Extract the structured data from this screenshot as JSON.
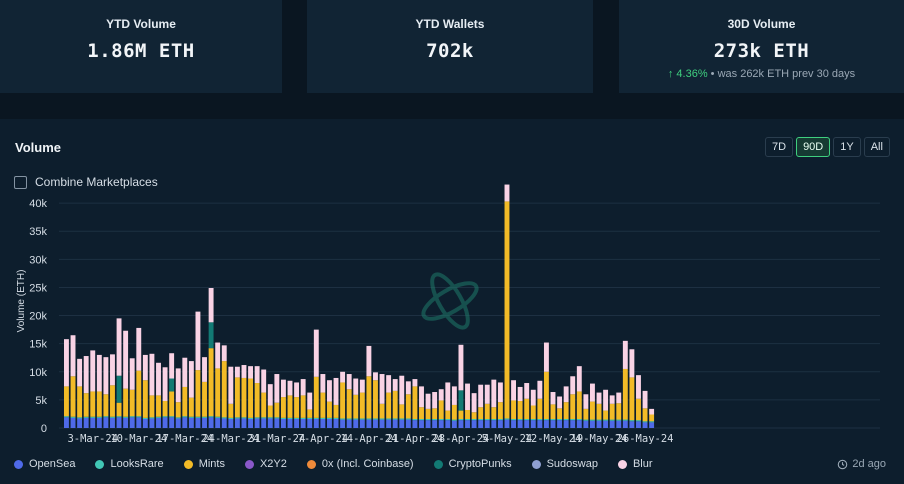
{
  "stats": [
    {
      "label": "YTD Volume",
      "value": "1.86M ETH"
    },
    {
      "label": "YTD Wallets",
      "value": "702k"
    },
    {
      "label": "30D Volume",
      "value": "273k ETH",
      "delta_arrow": "↑",
      "delta": "4.36%",
      "delta_note": "• was 262k ETH prev 30 days"
    }
  ],
  "volume_panel": {
    "title": "Volume",
    "ranges": [
      "7D",
      "90D",
      "1Y",
      "All"
    ],
    "active_range": "90D",
    "combine_label": "Combine Marketplaces",
    "updated": "2d ago"
  },
  "colors": {
    "opensea": "#4f6ae8",
    "looksrare": "#41c7b5",
    "mints": "#f2bb27",
    "x2y2": "#8a58c9",
    "zerox": "#ee8a3a",
    "cryptopunks": "#127a74",
    "sudoswap": "#8e9fd1",
    "blur": "#f9d3e5",
    "accent": "#3fcf7f"
  },
  "chart_data": {
    "type": "bar",
    "stacked": true,
    "ylabel": "Volume (ETH)",
    "yticks": [
      "0",
      "5k",
      "10k",
      "15k",
      "20k",
      "25k",
      "30k",
      "35k",
      "40k"
    ],
    "ylim": [
      0,
      45000
    ],
    "grid": true,
    "xtick_labels": [
      "3-Mar-24",
      "10-Mar-24",
      "17-Mar-24",
      "24-Mar-24",
      "31-Mar-24",
      "7-Apr-24",
      "14-Apr-24",
      "21-Apr-24",
      "28-Apr-24",
      "5-May-24",
      "12-May-24",
      "19-May-24",
      "26-May-24"
    ],
    "xtick_day_index": [
      4,
      11,
      18,
      25,
      32,
      39,
      46,
      53,
      60,
      67,
      74,
      81,
      88
    ],
    "series": [
      {
        "name": "OpenSea",
        "color_key": "opensea",
        "values": [
          1900,
          1800,
          1700,
          1800,
          1800,
          1800,
          1900,
          1800,
          1900,
          1800,
          1900,
          1900,
          1600,
          1700,
          1800,
          1900,
          1900,
          1700,
          1900,
          1800,
          1800,
          1800,
          1900,
          1800,
          1700,
          1600,
          1700,
          1700,
          1600,
          1700,
          1700,
          1700,
          1700,
          1600,
          1600,
          1600,
          1600,
          1600,
          1600,
          1600,
          1600,
          1600,
          1500,
          1500,
          1500,
          1500,
          1500,
          1500,
          1500,
          1500,
          1500,
          1500,
          1500,
          1400,
          1400,
          1400,
          1400,
          1400,
          1400,
          1300,
          1400,
          1400,
          1400,
          1400,
          1400,
          1400,
          1400,
          1500,
          1400,
          1400,
          1400,
          1400,
          1400,
          1400,
          1400,
          1400,
          1400,
          1400,
          1400,
          1300,
          1300,
          1300,
          1300,
          1300,
          1300,
          1300,
          1200,
          1200,
          1000,
          1000
        ]
      },
      {
        "name": "LooksRare",
        "color_key": "looksrare",
        "values": [
          200,
          200,
          200,
          200,
          200,
          200,
          200,
          200,
          200,
          200,
          200,
          200,
          200,
          200,
          200,
          200,
          200,
          200,
          200,
          200,
          200,
          200,
          200,
          200,
          200,
          200,
          200,
          200,
          200,
          200,
          200,
          200,
          200,
          200,
          200,
          200,
          200,
          200,
          200,
          200,
          200,
          200,
          200,
          200,
          200,
          200,
          200,
          200,
          200,
          200,
          200,
          200,
          200,
          200,
          200,
          200,
          200,
          200,
          200,
          200,
          200,
          200,
          200,
          200,
          200,
          200,
          200,
          200,
          200,
          200,
          200,
          200,
          200,
          200,
          200,
          200,
          200,
          200,
          200,
          200,
          200,
          200,
          200,
          200,
          200,
          200,
          200,
          200,
          200,
          200
        ]
      },
      {
        "name": "Mints",
        "color_key": "mints",
        "values": [
          5300,
          7200,
          5500,
          4200,
          4500,
          4500,
          3900,
          5600,
          2400,
          5000,
          4700,
          8100,
          6700,
          3900,
          3800,
          2700,
          4400,
          2700,
          5200,
          3400,
          8300,
          6200,
          12100,
          8600,
          10000,
          2500,
          7100,
          7000,
          7000,
          6100,
          4400,
          2100,
          2600,
          3700,
          4000,
          3700,
          4000,
          1500,
          7300,
          4500,
          2900,
          2300,
          6400,
          5200,
          4200,
          4600,
          7500,
          6800,
          2600,
          4600,
          4900,
          2500,
          4300,
          5800,
          2100,
          1800,
          1900,
          3300,
          1500,
          2600,
          1500,
          1600,
          1200,
          2100,
          2700,
          2100,
          3000,
          38600,
          3300,
          3200,
          3600,
          2400,
          3600,
          8400,
          2600,
          1900,
          3000,
          4400,
          4900,
          1900,
          3200,
          2800,
          1600,
          2800,
          2900,
          9000,
          7600,
          3800,
          2300,
          1200
        ]
      },
      {
        "name": "X2Y2",
        "color_key": "x2y2",
        "values": [
          0,
          0,
          0,
          0,
          0,
          0,
          0,
          0,
          0,
          0,
          0,
          0,
          0,
          0,
          0,
          0,
          0,
          0,
          0,
          0,
          0,
          0,
          0,
          0,
          0,
          0,
          0,
          0,
          0,
          0,
          0,
          0,
          0,
          0,
          0,
          0,
          0,
          0,
          0,
          0,
          0,
          0,
          0,
          0,
          0,
          0,
          0,
          0,
          0,
          0,
          0,
          0,
          0,
          0,
          0,
          0,
          0,
          0,
          0,
          0,
          0,
          0,
          0,
          0,
          0,
          0,
          0,
          0,
          0,
          0,
          0,
          0,
          0,
          0,
          0,
          0,
          0,
          0,
          0,
          0,
          0,
          0,
          0,
          0,
          0,
          0,
          0,
          0,
          0,
          0
        ]
      },
      {
        "name": "0x (Incl. Coinbase)",
        "color_key": "zerox",
        "values": [
          0,
          0,
          0,
          0,
          0,
          0,
          0,
          0,
          0,
          0,
          0,
          0,
          0,
          0,
          0,
          0,
          0,
          0,
          0,
          0,
          0,
          0,
          0,
          0,
          0,
          0,
          0,
          0,
          0,
          0,
          0,
          0,
          0,
          0,
          0,
          0,
          0,
          0,
          0,
          0,
          0,
          0,
          0,
          0,
          0,
          0,
          0,
          0,
          0,
          0,
          0,
          0,
          0,
          0,
          0,
          0,
          0,
          0,
          0,
          0,
          0,
          0,
          0,
          0,
          0,
          0,
          0,
          0,
          0,
          0,
          0,
          0,
          0,
          0,
          0,
          0,
          0,
          0,
          0,
          0,
          0,
          0,
          0,
          0,
          0,
          0,
          0,
          0,
          0,
          0
        ]
      },
      {
        "name": "CryptoPunks",
        "color_key": "cryptopunks",
        "values": [
          0,
          0,
          0,
          0,
          0,
          0,
          0,
          0,
          4800,
          0,
          0,
          0,
          0,
          0,
          0,
          0,
          2300,
          0,
          0,
          0,
          0,
          0,
          4600,
          0,
          0,
          0,
          0,
          0,
          0,
          0,
          0,
          0,
          0,
          0,
          0,
          0,
          0,
          0,
          0,
          0,
          0,
          0,
          0,
          0,
          0,
          0,
          0,
          0,
          0,
          0,
          0,
          0,
          0,
          0,
          0,
          0,
          0,
          0,
          0,
          0,
          3600,
          0,
          0,
          0,
          0,
          0,
          0,
          0,
          0,
          0,
          0,
          0,
          0,
          0,
          0,
          0,
          0,
          0,
          0,
          0,
          0,
          0,
          0,
          0,
          0,
          0,
          0,
          0,
          0,
          0
        ]
      },
      {
        "name": "Sudoswap",
        "color_key": "sudoswap",
        "values": [
          0,
          0,
          0,
          0,
          0,
          0,
          0,
          0,
          0,
          0,
          0,
          0,
          0,
          0,
          0,
          0,
          0,
          0,
          0,
          0,
          0,
          0,
          0,
          0,
          0,
          0,
          0,
          0,
          0,
          0,
          0,
          0,
          0,
          0,
          0,
          0,
          0,
          0,
          0,
          0,
          0,
          0,
          0,
          0,
          0,
          0,
          0,
          0,
          0,
          0,
          0,
          0,
          0,
          0,
          0,
          0,
          0,
          0,
          0,
          0,
          0,
          0,
          0,
          0,
          0,
          0,
          0,
          0,
          0,
          0,
          0,
          0,
          0,
          0,
          0,
          0,
          0,
          0,
          0,
          0,
          0,
          0,
          0,
          0,
          0,
          0,
          0,
          0,
          0,
          0
        ]
      },
      {
        "name": "Blur",
        "color_key": "blur",
        "values": [
          8400,
          7300,
          4900,
          6600,
          7300,
          6500,
          6600,
          5500,
          10200,
          10300,
          5600,
          7600,
          4500,
          7400,
          5800,
          6000,
          4500,
          6000,
          5200,
          6500,
          10400,
          4400,
          6100,
          4600,
          2800,
          6600,
          1900,
          2300,
          2200,
          3000,
          4100,
          3800,
          5100,
          3100,
          2600,
          2600,
          2900,
          3000,
          8400,
          3300,
          3800,
          4800,
          1900,
          2700,
          2900,
          2300,
          5400,
          1400,
          5300,
          3100,
          2100,
          5100,
          2300,
          1300,
          3700,
          2700,
          2900,
          2000,
          5000,
          3300,
          8100,
          4700,
          3400,
          4000,
          3400,
          4900,
          3500,
          3000,
          3600,
          2500,
          2800,
          2800,
          3200,
          5200,
          2200,
          2100,
          2800,
          3200,
          4500,
          2600,
          3200,
          2000,
          3700,
          1500,
          1900,
          5000,
          5000,
          4200,
          3100,
          1000
        ]
      }
    ]
  }
}
